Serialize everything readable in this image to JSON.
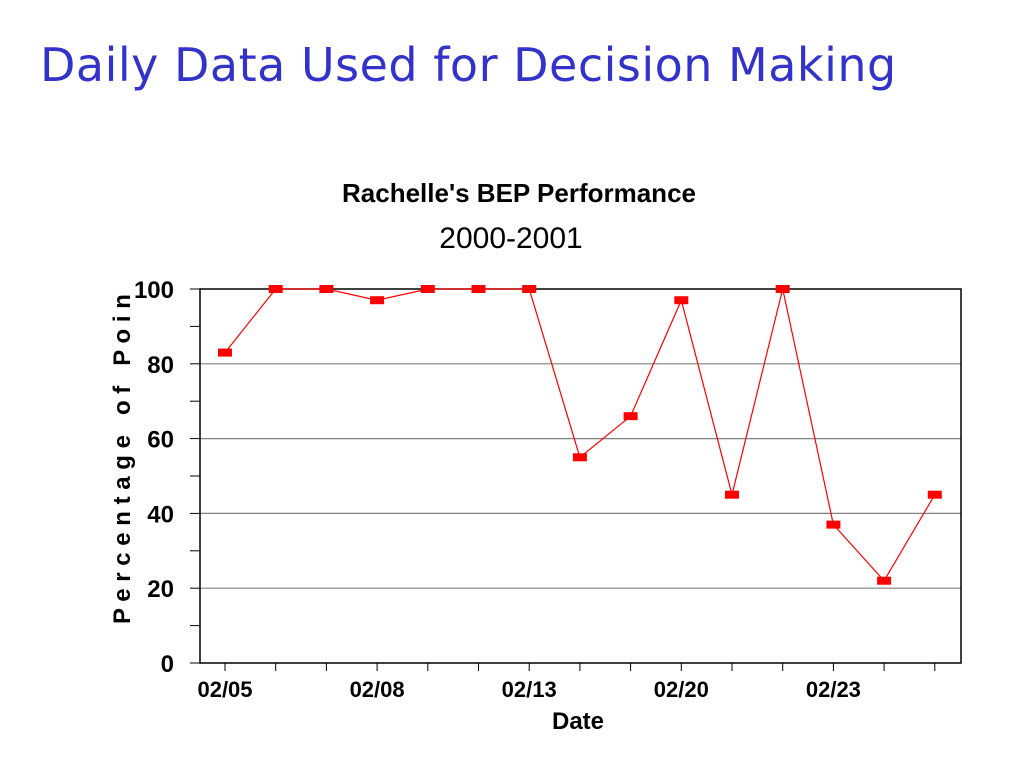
{
  "slide": {
    "title": "Daily Data Used for Decision Making"
  },
  "colors": {
    "slide_title": "#3333cc",
    "series_line": "#ff0000",
    "marker": "#ff0000",
    "grid": "#808080",
    "axis": "#000000"
  },
  "chart_data": {
    "type": "line",
    "title": "Rachelle's BEP Performance",
    "subtitle": "2000-2001",
    "xlabel": "Date",
    "ylabel": "P e r c e n t a g e   o f   P o i n",
    "ylim": [
      0,
      100
    ],
    "yticks": [
      0,
      20,
      40,
      60,
      80,
      100
    ],
    "grid": true,
    "legend": "none",
    "x_tick_labels": [
      "02/05",
      "",
      "",
      "02/08",
      "",
      "",
      "02/13",
      "",
      "",
      "02/20",
      "",
      "",
      "02/23",
      "",
      ""
    ],
    "series": [
      {
        "values": [
          83,
          100,
          100,
          97,
          100,
          100,
          100,
          55,
          66,
          97,
          45,
          100,
          37,
          22,
          45
        ]
      }
    ]
  }
}
